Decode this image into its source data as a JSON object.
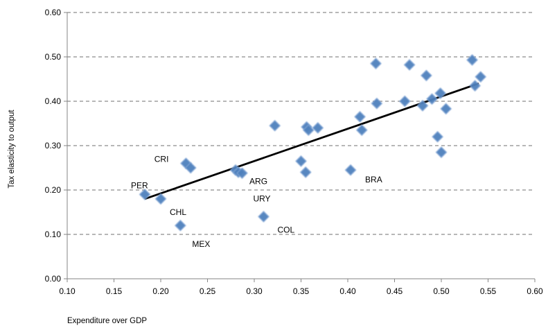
{
  "chart_data": {
    "type": "scatter",
    "xlabel": "Expenditure over GDP",
    "ylabel": "Tax elasticity to output",
    "xlim": [
      0.1,
      0.6
    ],
    "ylim": [
      0.0,
      0.6
    ],
    "x_ticks": [
      "0.10",
      "0.15",
      "0.20",
      "0.25",
      "0.30",
      "0.35",
      "0.40",
      "0.45",
      "0.50",
      "0.55",
      "0.60"
    ],
    "y_ticks": [
      "0.00",
      "0.10",
      "0.20",
      "0.30",
      "0.40",
      "0.50",
      "0.60"
    ],
    "grid": "horizontal dashed",
    "marker_color": "#4f81bd",
    "trendline_color": "#000000",
    "trendline": [
      [
        0.183,
        0.18
      ],
      [
        0.54,
        0.44
      ]
    ],
    "points": [
      {
        "x": 0.183,
        "y": 0.19,
        "label": "PER"
      },
      {
        "x": 0.2,
        "y": 0.18,
        "label": "CHL"
      },
      {
        "x": 0.221,
        "y": 0.12,
        "label": "MEX"
      },
      {
        "x": 0.227,
        "y": 0.26,
        "label": "CRI"
      },
      {
        "x": 0.232,
        "y": 0.25,
        "label": ""
      },
      {
        "x": 0.28,
        "y": 0.245,
        "label": ""
      },
      {
        "x": 0.283,
        "y": 0.24,
        "label": "ARG"
      },
      {
        "x": 0.287,
        "y": 0.238,
        "label": "URY"
      },
      {
        "x": 0.31,
        "y": 0.14,
        "label": "COL"
      },
      {
        "x": 0.322,
        "y": 0.345,
        "label": ""
      },
      {
        "x": 0.35,
        "y": 0.265,
        "label": ""
      },
      {
        "x": 0.355,
        "y": 0.24,
        "label": ""
      },
      {
        "x": 0.356,
        "y": 0.342,
        "label": ""
      },
      {
        "x": 0.358,
        "y": 0.335,
        "label": ""
      },
      {
        "x": 0.368,
        "y": 0.34,
        "label": ""
      },
      {
        "x": 0.403,
        "y": 0.245,
        "label": "BRA"
      },
      {
        "x": 0.413,
        "y": 0.365,
        "label": ""
      },
      {
        "x": 0.415,
        "y": 0.335,
        "label": ""
      },
      {
        "x": 0.43,
        "y": 0.485,
        "label": ""
      },
      {
        "x": 0.431,
        "y": 0.395,
        "label": ""
      },
      {
        "x": 0.461,
        "y": 0.4,
        "label": ""
      },
      {
        "x": 0.466,
        "y": 0.482,
        "label": ""
      },
      {
        "x": 0.48,
        "y": 0.39,
        "label": ""
      },
      {
        "x": 0.484,
        "y": 0.458,
        "label": ""
      },
      {
        "x": 0.49,
        "y": 0.405,
        "label": ""
      },
      {
        "x": 0.496,
        "y": 0.32,
        "label": ""
      },
      {
        "x": 0.499,
        "y": 0.418,
        "label": ""
      },
      {
        "x": 0.5,
        "y": 0.285,
        "label": ""
      },
      {
        "x": 0.505,
        "y": 0.383,
        "label": ""
      },
      {
        "x": 0.533,
        "y": 0.493,
        "label": ""
      },
      {
        "x": 0.536,
        "y": 0.435,
        "label": ""
      },
      {
        "x": 0.542,
        "y": 0.455,
        "label": ""
      }
    ]
  }
}
